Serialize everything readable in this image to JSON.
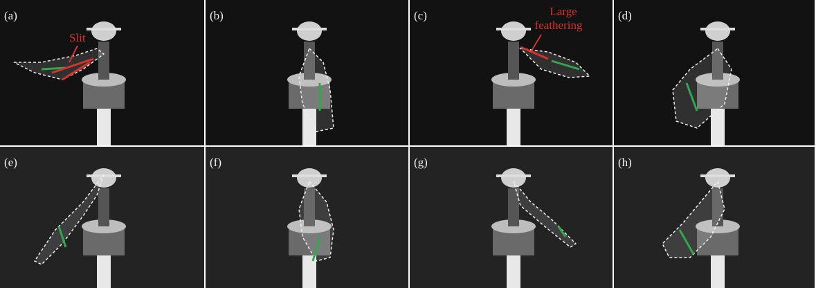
{
  "panels": [
    {
      "label": "(a)",
      "annotation": [
        "Slit"
      ]
    },
    {
      "label": "(b)"
    },
    {
      "label": "(c)",
      "annotation": [
        "Large",
        "feathering"
      ]
    },
    {
      "label": "(d)"
    },
    {
      "label": "(e)"
    },
    {
      "label": "(f)"
    },
    {
      "label": "(g)"
    },
    {
      "label": "(h)"
    }
  ]
}
